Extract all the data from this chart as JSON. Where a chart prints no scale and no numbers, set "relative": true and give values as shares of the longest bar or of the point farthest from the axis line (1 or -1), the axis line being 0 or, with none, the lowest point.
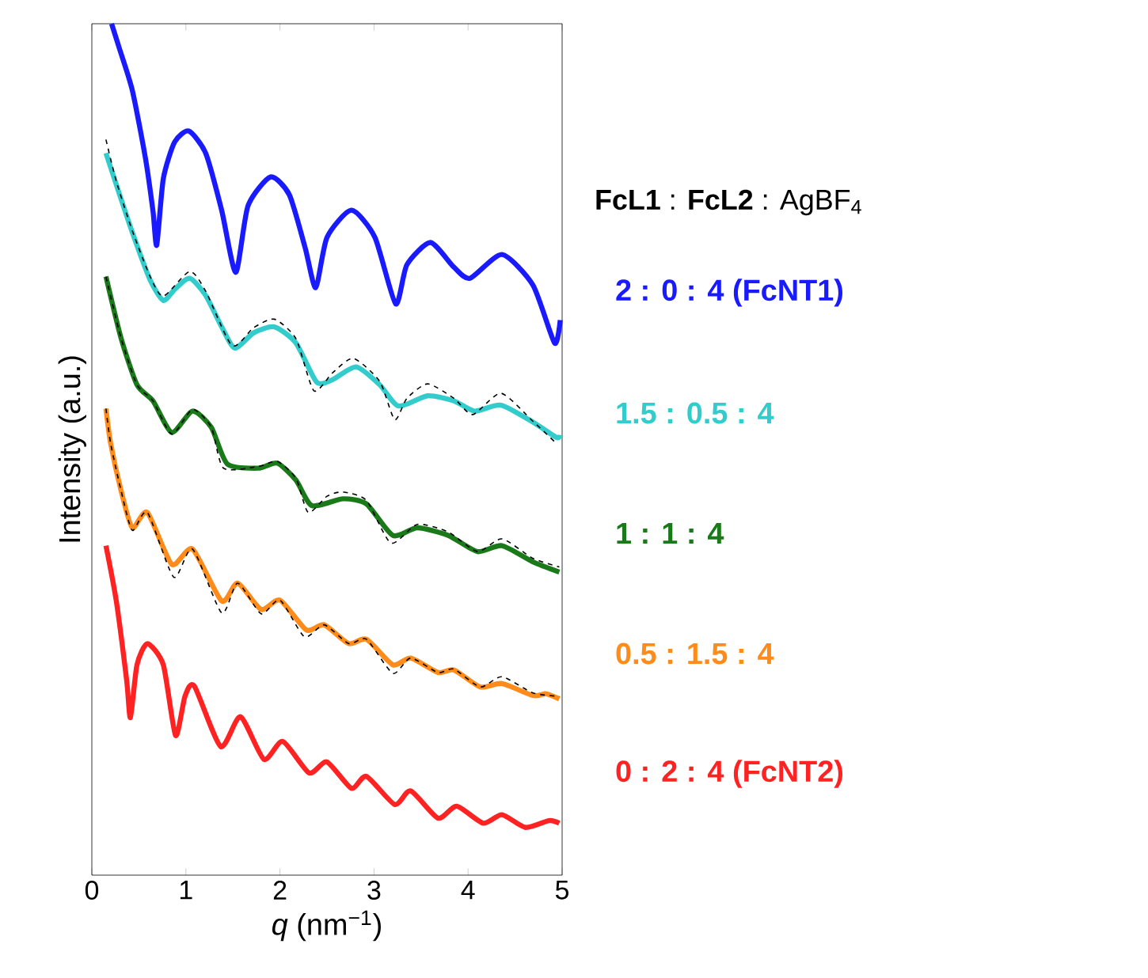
{
  "chart_data": {
    "type": "line",
    "relative": true,
    "xlabel": "*q* (nm$^{−1}$)",
    "ylabel": "Intensity (a.u.)",
    "xlim": [
      0,
      5
    ],
    "xticks": [
      0,
      1,
      2,
      3,
      4,
      5
    ],
    "annotations": [
      "**FcL1** : **FcL2** : AgBF$_{4}$"
    ],
    "series": [
      {
        "name": "2 : 0 : 4 (FcNT1)",
        "color": "#1a1aff",
        "x": [
          0.21,
          0.29,
          0.43,
          0.57,
          0.65,
          0.69,
          0.76,
          0.88,
          1.03,
          1.21,
          1.38,
          1.53,
          1.66,
          1.9,
          2.1,
          2.27,
          2.38,
          2.5,
          2.76,
          3.01,
          3.23,
          3.35,
          3.6,
          3.85,
          4.02,
          4.36,
          4.69,
          4.92,
          4.98
        ],
        "values": [
          1.0,
          0.972,
          0.922,
          0.842,
          0.78,
          0.74,
          0.818,
          0.861,
          0.874,
          0.848,
          0.781,
          0.708,
          0.786,
          0.82,
          0.799,
          0.736,
          0.69,
          0.749,
          0.781,
          0.749,
          0.671,
          0.717,
          0.743,
          0.714,
          0.701,
          0.729,
          0.693,
          0.625,
          0.652
        ]
      },
      {
        "name": "1.5 : 0.5 : 4",
        "color": "#33cccc",
        "x": [
          0.15,
          0.26,
          0.43,
          0.62,
          0.76,
          0.88,
          1.04,
          1.21,
          1.38,
          1.52,
          1.72,
          1.94,
          2.17,
          2.39,
          2.56,
          2.81,
          3.06,
          3.26,
          3.57,
          3.85,
          4.07,
          4.35,
          4.69,
          4.94,
          4.98
        ],
        "values": [
          0.848,
          0.811,
          0.755,
          0.699,
          0.675,
          0.688,
          0.701,
          0.681,
          0.644,
          0.619,
          0.637,
          0.644,
          0.625,
          0.579,
          0.582,
          0.597,
          0.576,
          0.551,
          0.563,
          0.557,
          0.545,
          0.552,
          0.532,
          0.514,
          0.517
        ]
      },
      {
        "color": "#000000",
        "line_style": "dashed",
        "x": [
          0.15,
          0.26,
          0.43,
          0.62,
          0.76,
          1.04,
          1.21,
          1.49,
          1.72,
          1.94,
          2.17,
          2.36,
          2.56,
          2.78,
          3.06,
          3.22,
          3.35,
          3.57,
          3.85,
          4.05,
          4.35,
          4.69,
          4.94
        ],
        "values": [
          0.864,
          0.815,
          0.757,
          0.703,
          0.68,
          0.709,
          0.686,
          0.622,
          0.643,
          0.653,
          0.63,
          0.569,
          0.59,
          0.607,
          0.58,
          0.535,
          0.56,
          0.577,
          0.56,
          0.541,
          0.566,
          0.533,
          0.507
        ]
      },
      {
        "name": "1 : 1 : 4",
        "color": "#1a7a1a",
        "x": [
          0.15,
          0.31,
          0.48,
          0.65,
          0.85,
          1.07,
          1.27,
          1.44,
          1.77,
          1.97,
          2.17,
          2.34,
          2.67,
          2.92,
          3.2,
          3.46,
          3.79,
          4.1,
          4.36,
          4.69,
          4.97
        ],
        "values": [
          0.703,
          0.631,
          0.576,
          0.557,
          0.52,
          0.545,
          0.526,
          0.483,
          0.478,
          0.484,
          0.464,
          0.434,
          0.442,
          0.436,
          0.399,
          0.408,
          0.399,
          0.38,
          0.387,
          0.368,
          0.356
        ]
      },
      {
        "color": "#000000",
        "line_style": "dashed",
        "x": [
          0.15,
          0.31,
          0.48,
          0.65,
          0.85,
          1.07,
          1.27,
          1.4,
          1.77,
          1.97,
          2.17,
          2.3,
          2.5,
          2.67,
          2.92,
          3.18,
          3.46,
          3.79,
          4.1,
          4.36,
          4.69,
          4.97
        ],
        "values": [
          0.703,
          0.631,
          0.576,
          0.557,
          0.518,
          0.547,
          0.526,
          0.478,
          0.48,
          0.486,
          0.466,
          0.426,
          0.445,
          0.45,
          0.44,
          0.39,
          0.412,
          0.403,
          0.38,
          0.395,
          0.372,
          0.362
        ]
      },
      {
        "name": "0.5 : 1.5 : 4",
        "color": "#ff8c1a",
        "x": [
          0.15,
          0.2,
          0.31,
          0.43,
          0.59,
          0.85,
          1.07,
          1.38,
          1.55,
          1.8,
          2.0,
          2.28,
          2.47,
          2.73,
          2.92,
          3.2,
          3.39,
          3.68,
          3.85,
          4.13,
          4.36,
          4.69,
          4.83,
          4.97
        ],
        "values": [
          0.548,
          0.507,
          0.452,
          0.408,
          0.426,
          0.365,
          0.383,
          0.322,
          0.343,
          0.312,
          0.323,
          0.288,
          0.294,
          0.272,
          0.277,
          0.247,
          0.255,
          0.238,
          0.241,
          0.221,
          0.225,
          0.211,
          0.213,
          0.207
        ]
      },
      {
        "color": "#000000",
        "line_style": "dashed",
        "x": [
          0.15,
          0.2,
          0.31,
          0.43,
          0.59,
          0.87,
          1.07,
          1.38,
          1.55,
          1.8,
          2.0,
          2.26,
          2.47,
          2.73,
          2.92,
          3.2,
          3.39,
          3.68,
          3.85,
          4.13,
          4.36,
          4.69,
          4.97
        ],
        "values": [
          0.548,
          0.507,
          0.452,
          0.405,
          0.426,
          0.35,
          0.383,
          0.308,
          0.343,
          0.307,
          0.323,
          0.28,
          0.294,
          0.272,
          0.277,
          0.237,
          0.255,
          0.238,
          0.242,
          0.221,
          0.233,
          0.214,
          0.21
        ]
      },
      {
        "name": "0 : 2 : 4 (FcNT2)",
        "color": "#ff2222",
        "x": [
          0.15,
          0.26,
          0.37,
          0.41,
          0.48,
          0.59,
          0.76,
          0.89,
          0.99,
          1.09,
          1.37,
          1.58,
          1.83,
          2.03,
          2.31,
          2.5,
          2.76,
          2.92,
          3.22,
          3.39,
          3.68,
          3.88,
          4.16,
          4.36,
          4.61,
          4.86,
          4.97
        ],
        "values": [
          0.387,
          0.322,
          0.229,
          0.185,
          0.247,
          0.272,
          0.247,
          0.164,
          0.21,
          0.222,
          0.151,
          0.186,
          0.136,
          0.157,
          0.12,
          0.133,
          0.102,
          0.116,
          0.083,
          0.099,
          0.067,
          0.081,
          0.061,
          0.071,
          0.056,
          0.064,
          0.061
        ]
      }
    ]
  }
}
